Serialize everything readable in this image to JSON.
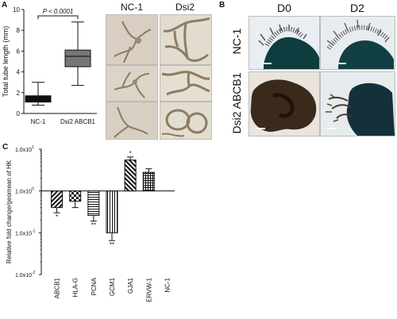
{
  "panelA": {
    "letter": "A",
    "ylabel": "Total tube length (mm)",
    "yticks": [
      "0",
      "2",
      "4",
      "6",
      "8",
      "10"
    ],
    "categories": [
      "NC-1",
      "Dsi2 ABCB1"
    ],
    "pvalue": "P < 0.0001",
    "photo_headers": [
      "NC-1",
      "Dsi2 ABCB1"
    ]
  },
  "panelB": {
    "letter": "B",
    "col_headers": [
      "D0",
      "D2"
    ],
    "row_labels": [
      "NC-1",
      "Dsi2 ABCB1"
    ]
  },
  "panelC": {
    "letter": "C",
    "ylabel": "Relative fold change/geomean of HK",
    "yticks": [
      "1.0x10",
      "1.0x10",
      "1.0x10",
      "1.0x10"
    ],
    "ytick_exponents": [
      "1",
      "0",
      "-1",
      "-2"
    ],
    "categories": [
      "ABCB1",
      "HLA-G",
      "PCNA",
      "GCM1",
      "GJA1",
      "ERVW-1",
      "NC-1"
    ],
    "annotations": [
      "*",
      "",
      "**",
      "**",
      "*",
      "",
      ""
    ]
  },
  "chart_data": [
    {
      "type": "box",
      "title": "",
      "xlabel": "",
      "ylabel": "Total tube length (mm)",
      "ylim": [
        0,
        10
      ],
      "categories": [
        "NC-1",
        "Dsi2 ABCB1"
      ],
      "boxes": [
        {
          "name": "NC-1",
          "min": 0.8,
          "q1": 1.1,
          "median": 1.4,
          "q3": 1.7,
          "max": 3.0
        },
        {
          "name": "Dsi2 ABCB1",
          "min": 2.7,
          "q1": 4.5,
          "median": 5.5,
          "q3": 6.1,
          "max": 8.8
        }
      ],
      "annotation": "P < 0.0001",
      "fills": [
        "#111111",
        "#777777"
      ]
    },
    {
      "type": "bar",
      "title": "",
      "xlabel": "",
      "ylabel": "Relative fold change/geomean of HK",
      "yscale": "log",
      "ylim": [
        0.01,
        10
      ],
      "categories": [
        "ABCB1",
        "HLA-G",
        "PCNA",
        "GCM1",
        "GJA1",
        "ERVW-1",
        "NC-1"
      ],
      "values": [
        0.4,
        0.57,
        0.26,
        0.1,
        5.5,
        2.8,
        1.0
      ],
      "errors": [
        0.3,
        0.4,
        0.19,
        0.065,
        6.5,
        3.4,
        1.0
      ],
      "patterns": [
        "diag-right",
        "checker",
        "horizontal",
        "vertical",
        "diag-left",
        "grid",
        "none"
      ],
      "annotations": [
        "*",
        "",
        "**",
        "**",
        "*",
        "",
        ""
      ]
    }
  ]
}
